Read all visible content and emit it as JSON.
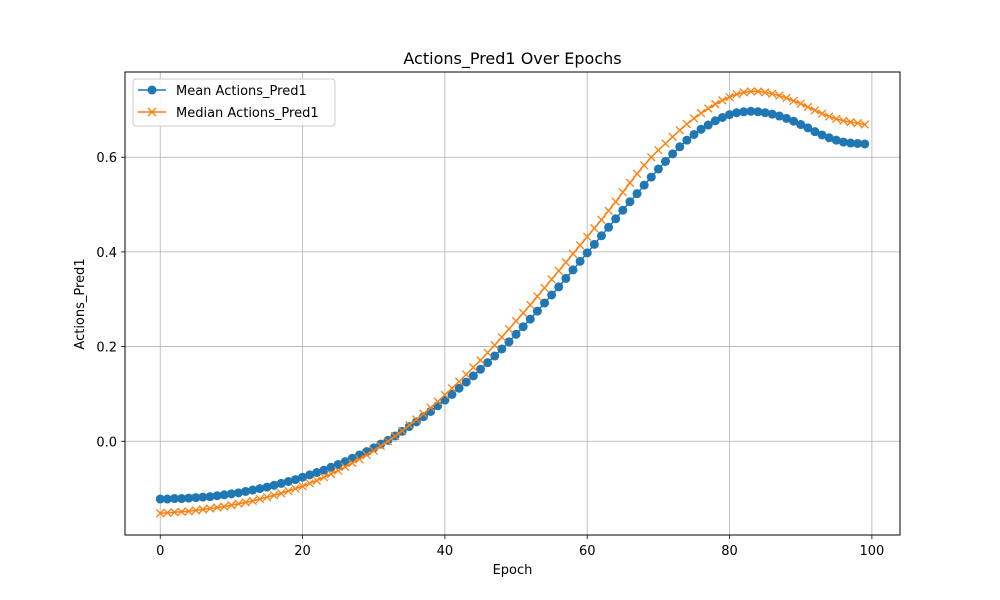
{
  "chart_data": {
    "type": "line",
    "title": "Actions_Pred1 Over Epochs",
    "xlabel": "Epoch",
    "ylabel": "Actions_Pred1",
    "xlim": [
      -4.95,
      103.95
    ],
    "ylim": [
      -0.198,
      0.78
    ],
    "xticks": [
      0,
      20,
      40,
      60,
      80,
      100
    ],
    "yticks": [
      0.0,
      0.2,
      0.4,
      0.6
    ],
    "grid": true,
    "legend": "top-left",
    "x": [
      0,
      1,
      2,
      3,
      4,
      5,
      6,
      7,
      8,
      9,
      10,
      11,
      12,
      13,
      14,
      15,
      16,
      17,
      18,
      19,
      20,
      21,
      22,
      23,
      24,
      25,
      26,
      27,
      28,
      29,
      30,
      31,
      32,
      33,
      34,
      35,
      36,
      37,
      38,
      39,
      40,
      41,
      42,
      43,
      44,
      45,
      46,
      47,
      48,
      49,
      50,
      51,
      52,
      53,
      54,
      55,
      56,
      57,
      58,
      59,
      60,
      61,
      62,
      63,
      64,
      65,
      66,
      67,
      68,
      69,
      70,
      71,
      72,
      73,
      74,
      75,
      76,
      77,
      78,
      79,
      80,
      81,
      82,
      83,
      84,
      85,
      86,
      87,
      88,
      89,
      90,
      91,
      92,
      93,
      94,
      95,
      96,
      97,
      98,
      99
    ],
    "series": [
      {
        "name": "Mean Actions_Pred1",
        "color": "#1f77b4",
        "marker": "circle",
        "values": [
          -0.122,
          -0.122,
          -0.121,
          -0.121,
          -0.12,
          -0.119,
          -0.118,
          -0.117,
          -0.115,
          -0.113,
          -0.111,
          -0.109,
          -0.106,
          -0.103,
          -0.1,
          -0.097,
          -0.093,
          -0.089,
          -0.085,
          -0.081,
          -0.076,
          -0.071,
          -0.066,
          -0.061,
          -0.055,
          -0.049,
          -0.043,
          -0.036,
          -0.029,
          -0.022,
          -0.014,
          -0.006,
          0.002,
          0.011,
          0.021,
          0.031,
          0.041,
          0.052,
          0.063,
          0.075,
          0.087,
          0.099,
          0.112,
          0.125,
          0.138,
          0.152,
          0.166,
          0.18,
          0.195,
          0.21,
          0.226,
          0.242,
          0.258,
          0.275,
          0.292,
          0.309,
          0.326,
          0.344,
          0.362,
          0.38,
          0.398,
          0.416,
          0.434,
          0.452,
          0.47,
          0.488,
          0.506,
          0.523,
          0.541,
          0.558,
          0.575,
          0.591,
          0.607,
          0.622,
          0.636,
          0.648,
          0.659,
          0.668,
          0.677,
          0.684,
          0.69,
          0.694,
          0.696,
          0.697,
          0.696,
          0.694,
          0.691,
          0.687,
          0.682,
          0.676,
          0.669,
          0.662,
          0.654,
          0.647,
          0.641,
          0.636,
          0.632,
          0.63,
          0.629,
          0.628
        ]
      },
      {
        "name": "Median Actions_Pred1",
        "color": "#ff7f0e",
        "marker": "x",
        "values": [
          -0.152,
          -0.151,
          -0.15,
          -0.149,
          -0.148,
          -0.146,
          -0.144,
          -0.142,
          -0.14,
          -0.138,
          -0.135,
          -0.132,
          -0.129,
          -0.126,
          -0.122,
          -0.118,
          -0.114,
          -0.11,
          -0.105,
          -0.1,
          -0.095,
          -0.089,
          -0.083,
          -0.076,
          -0.069,
          -0.062,
          -0.054,
          -0.046,
          -0.038,
          -0.029,
          -0.02,
          -0.01,
          0.0,
          0.011,
          0.022,
          0.034,
          0.046,
          0.058,
          0.071,
          0.084,
          0.098,
          0.112,
          0.126,
          0.141,
          0.156,
          0.171,
          0.187,
          0.203,
          0.22,
          0.237,
          0.254,
          0.271,
          0.288,
          0.306,
          0.324,
          0.342,
          0.36,
          0.378,
          0.396,
          0.414,
          0.432,
          0.45,
          0.468,
          0.487,
          0.506,
          0.526,
          0.546,
          0.565,
          0.583,
          0.6,
          0.615,
          0.629,
          0.643,
          0.657,
          0.67,
          0.682,
          0.693,
          0.703,
          0.712,
          0.72,
          0.727,
          0.733,
          0.737,
          0.739,
          0.739,
          0.737,
          0.734,
          0.73,
          0.725,
          0.719,
          0.713,
          0.706,
          0.699,
          0.692,
          0.686,
          0.681,
          0.677,
          0.674,
          0.672,
          0.669
        ]
      }
    ]
  }
}
